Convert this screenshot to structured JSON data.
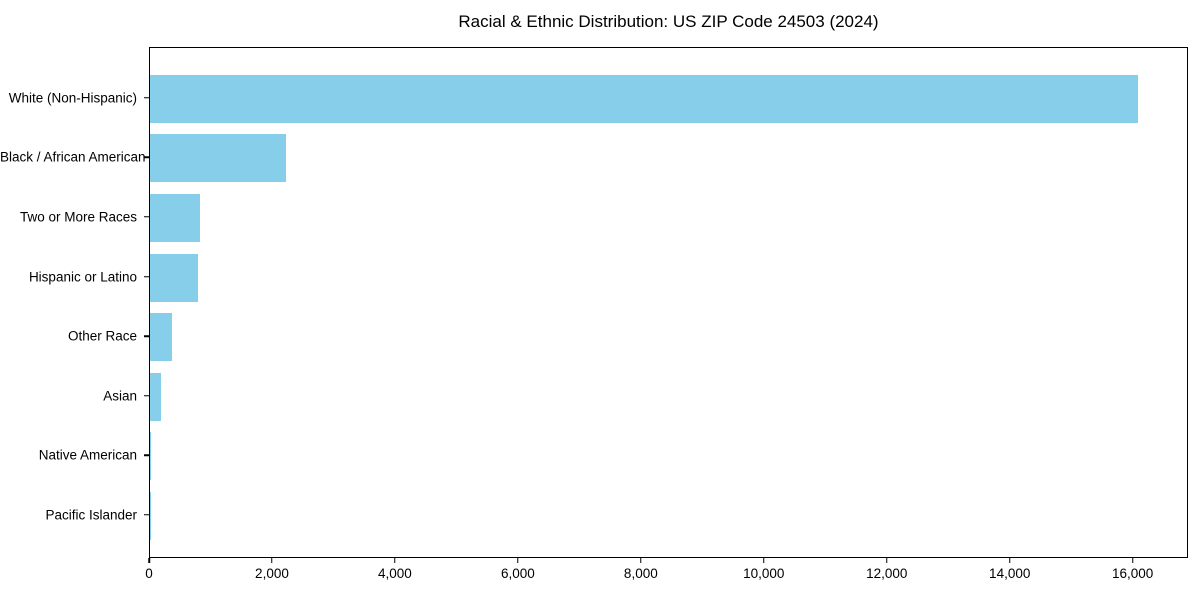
{
  "title": "Racial & Ethnic Distribution: US ZIP Code 24503 (2024)",
  "colors": {
    "bar": "#87CEEB",
    "axis": "#000000",
    "text": "#000000",
    "background": "#ffffff"
  },
  "chart_data": {
    "type": "bar",
    "orientation": "horizontal",
    "title": "Racial & Ethnic Distribution: US ZIP Code 24503 (2024)",
    "categories": [
      "White (Non-Hispanic)",
      "Black / African American",
      "Two or More Races",
      "Hispanic or Latino",
      "Other Race",
      "Asian",
      "Native American",
      "Pacific Islander"
    ],
    "values": [
      16070,
      2210,
      820,
      780,
      350,
      180,
      20,
      10
    ],
    "xlabel": "",
    "ylabel": "",
    "xlim": [
      0,
      16900
    ],
    "x_ticks": [
      0,
      2000,
      4000,
      6000,
      8000,
      10000,
      12000,
      14000,
      16000
    ],
    "x_tick_labels": [
      "0",
      "2,000",
      "4,000",
      "6,000",
      "8,000",
      "10,000",
      "12,000",
      "14,000",
      "16,000"
    ],
    "grid": false,
    "legend": null,
    "bar_color": "#87CEEB"
  }
}
